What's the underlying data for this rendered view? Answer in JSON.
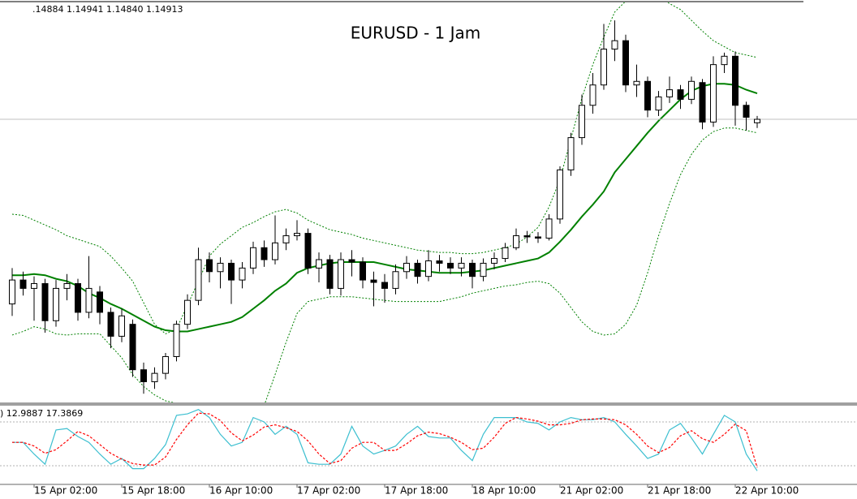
{
  "chart_data": [
    {
      "type": "candlestick",
      "title": "EURUSD - 1 Jam",
      "ohlc_label": ".14884 1.14941 1.14840 1.14913",
      "categories": [
        null,
        null,
        "15 Apr 02:00",
        null,
        null,
        null,
        null,
        null,
        null,
        null,
        "15 Apr 18:00",
        null,
        null,
        null,
        null,
        null,
        null,
        null,
        "16 Apr 10:00",
        null,
        null,
        null,
        null,
        null,
        null,
        null,
        "17 Apr 02:00",
        null,
        null,
        null,
        null,
        null,
        null,
        null,
        "17 Apr 18:00",
        null,
        null,
        null,
        null,
        null,
        null,
        null,
        "18 Apr 10:00",
        null,
        null,
        null,
        null,
        null,
        null,
        null,
        "21 Apr 02:00",
        null,
        null,
        null,
        null,
        null,
        null,
        null,
        "21 Apr 18:00",
        null,
        null,
        null,
        null,
        null,
        null,
        null,
        "22 Apr 10:00",
        null,
        null
      ],
      "open": [
        1.1337,
        1.1357,
        1.135,
        1.1354,
        1.1323,
        1.135,
        1.1354,
        1.133,
        1.1347,
        1.133,
        1.131,
        1.132,
        1.1282,
        1.1272,
        1.1279,
        1.1293,
        1.132,
        1.134,
        1.1374,
        1.1364,
        1.1371,
        1.1357,
        1.1367,
        1.1384,
        1.1374,
        1.1388,
        1.1394,
        1.1396,
        1.1367,
        1.1374,
        1.135,
        1.1374,
        1.1372,
        1.1357,
        1.1355,
        1.135,
        1.1364,
        1.1371,
        1.136,
        1.1373,
        1.1371,
        1.1367,
        1.1371,
        1.136,
        1.1371,
        1.1375,
        1.1384,
        1.1394,
        1.1393,
        1.1392,
        1.1408,
        1.1449,
        1.1476,
        1.1503,
        1.152,
        1.155,
        1.1557,
        1.152,
        1.1523,
        1.1499,
        1.151,
        1.1516,
        1.1508,
        1.1522,
        1.1489,
        1.1537,
        1.1544,
        1.1503,
        1.14884
      ],
      "high": [
        1.1367,
        1.1364,
        1.136,
        1.1358,
        1.1357,
        1.1362,
        1.1358,
        1.1377,
        1.1352,
        1.1334,
        1.1333,
        1.1324,
        1.1288,
        1.1284,
        1.1296,
        1.1323,
        1.1345,
        1.1384,
        1.138,
        1.1376,
        1.1374,
        1.1372,
        1.1389,
        1.139,
        1.1411,
        1.14,
        1.1407,
        1.14,
        1.138,
        1.1378,
        1.138,
        1.1382,
        1.1376,
        1.1364,
        1.1362,
        1.137,
        1.1377,
        1.1374,
        1.1382,
        1.1378,
        1.1376,
        1.1376,
        1.1374,
        1.1375,
        1.138,
        1.1388,
        1.14,
        1.1398,
        1.1397,
        1.1412,
        1.1452,
        1.148,
        1.1512,
        1.153,
        1.1571,
        1.1574,
        1.1562,
        1.1537,
        1.1527,
        1.1515,
        1.1527,
        1.152,
        1.1527,
        1.1525,
        1.1544,
        1.1547,
        1.1548,
        1.1506,
        1.14941
      ],
      "low": [
        1.1327,
        1.1344,
        1.1323,
        1.1313,
        1.1318,
        1.134,
        1.1323,
        1.1325,
        1.132,
        1.13,
        1.1305,
        1.1276,
        1.1262,
        1.1266,
        1.1274,
        1.1289,
        1.1316,
        1.1336,
        1.1355,
        1.135,
        1.1337,
        1.135,
        1.1362,
        1.1368,
        1.137,
        1.1382,
        1.139,
        1.1362,
        1.1355,
        1.1345,
        1.1344,
        1.136,
        1.135,
        1.1335,
        1.1338,
        1.1345,
        1.1358,
        1.1354,
        1.1356,
        1.1364,
        1.1362,
        1.136,
        1.135,
        1.1356,
        1.1366,
        1.1372,
        1.1382,
        1.1388,
        1.1388,
        1.139,
        1.1404,
        1.1444,
        1.147,
        1.1496,
        1.1516,
        1.154,
        1.1514,
        1.151,
        1.1493,
        1.1494,
        1.1505,
        1.15,
        1.1504,
        1.1483,
        1.1485,
        1.153,
        1.1486,
        1.1482,
        1.1484
      ],
      "close": [
        1.1357,
        1.135,
        1.1354,
        1.1323,
        1.135,
        1.1354,
        1.133,
        1.135,
        1.133,
        1.131,
        1.1327,
        1.1282,
        1.1272,
        1.1279,
        1.1293,
        1.132,
        1.134,
        1.1374,
        1.1364,
        1.1371,
        1.1357,
        1.1367,
        1.1384,
        1.1374,
        1.1388,
        1.1394,
        1.1396,
        1.1367,
        1.1374,
        1.135,
        1.1374,
        1.1372,
        1.1357,
        1.1355,
        1.135,
        1.1364,
        1.1371,
        1.136,
        1.1373,
        1.1371,
        1.1367,
        1.1371,
        1.136,
        1.1371,
        1.1375,
        1.1384,
        1.1394,
        1.1393,
        1.1392,
        1.1408,
        1.1449,
        1.1476,
        1.1503,
        1.152,
        1.155,
        1.1557,
        1.152,
        1.1523,
        1.1499,
        1.151,
        1.1516,
        1.1508,
        1.1523,
        1.1489,
        1.1537,
        1.1544,
        1.1503,
        1.1493,
        1.14913
      ],
      "bands": {
        "color": "#008000",
        "upper": [
          1.1412,
          1.1411,
          1.1407,
          1.1403,
          1.1399,
          1.1394,
          1.1391,
          1.1388,
          1.1385,
          1.1377,
          1.1367,
          1.1356,
          1.1338,
          1.132,
          1.1312,
          1.1316,
          1.1336,
          1.1356,
          1.1377,
          1.1387,
          1.1394,
          1.1401,
          1.1405,
          1.141,
          1.1414,
          1.1416,
          1.1413,
          1.1407,
          1.1403,
          1.1399,
          1.1397,
          1.1395,
          1.1392,
          1.139,
          1.1388,
          1.1386,
          1.1384,
          1.1382,
          1.1381,
          1.138,
          1.138,
          1.1379,
          1.1379,
          1.138,
          1.1382,
          1.1384,
          1.1387,
          1.1393,
          1.1401,
          1.1418,
          1.1441,
          1.1475,
          1.1509,
          1.1537,
          1.156,
          1.1581,
          1.159,
          1.1594,
          1.1596,
          1.1594,
          1.1588,
          1.1583,
          1.1574,
          1.1565,
          1.1557,
          1.1552,
          1.1547,
          1.1545,
          1.1543
        ],
        "middle": [
          1.1361,
          1.1361,
          1.1362,
          1.1361,
          1.1358,
          1.1356,
          1.1352,
          1.1346,
          1.1342,
          1.1337,
          1.1333,
          1.1328,
          1.1323,
          1.1318,
          1.1315,
          1.1314,
          1.1314,
          1.1316,
          1.1318,
          1.132,
          1.1322,
          1.1326,
          1.1333,
          1.134,
          1.1348,
          1.1354,
          1.1363,
          1.1367,
          1.1369,
          1.1371,
          1.1372,
          1.1372,
          1.1372,
          1.1372,
          1.137,
          1.1368,
          1.1366,
          1.1365,
          1.1364,
          1.1363,
          1.1363,
          1.1363,
          1.1364,
          1.1365,
          1.1367,
          1.1369,
          1.1371,
          1.1373,
          1.1375,
          1.138,
          1.1389,
          1.1399,
          1.141,
          1.142,
          1.1431,
          1.1447,
          1.1458,
          1.1469,
          1.148,
          1.149,
          1.1499,
          1.1508,
          1.1515,
          1.1519,
          1.1521,
          1.1521,
          1.152,
          1.1516,
          1.1513
        ],
        "lower": [
          1.1311,
          1.1314,
          1.1318,
          1.1316,
          1.1312,
          1.1311,
          1.1312,
          1.1312,
          1.1312,
          1.1302,
          1.1292,
          1.1278,
          1.1268,
          1.1261,
          1.1256,
          1.1254,
          1.1253,
          1.1251,
          1.125,
          1.1248,
          1.1248,
          1.1248,
          1.125,
          1.1252,
          1.1278,
          1.1305,
          1.1329,
          1.1339,
          1.1341,
          1.1343,
          1.1343,
          1.1343,
          1.1342,
          1.1341,
          1.134,
          1.1339,
          1.1339,
          1.1339,
          1.1339,
          1.1339,
          1.1341,
          1.1343,
          1.1346,
          1.1348,
          1.135,
          1.1352,
          1.1353,
          1.1355,
          1.1356,
          1.1354,
          1.1346,
          1.1334,
          1.1322,
          1.1314,
          1.1311,
          1.1312,
          1.132,
          1.1336,
          1.1363,
          1.1394,
          1.1421,
          1.1445,
          1.1462,
          1.1474,
          1.1481,
          1.1484,
          1.1484,
          1.1482,
          1.148
        ]
      },
      "ylim": [
        1.1254,
        1.1591
      ],
      "bull_color": "#ffffff",
      "bear_color": "#000000",
      "price_line_color": "#c0c0c0"
    },
    {
      "type": "line",
      "label": ") 12.9887 17.3869",
      "ylim": [
        0,
        100
      ],
      "levels": [
        20,
        80
      ],
      "series": [
        {
          "color": "#3cbfd0",
          "dash": false,
          "values": [
            52,
            52,
            36,
            22,
            69,
            71,
            60,
            52,
            36,
            22,
            30,
            16,
            16,
            30,
            49,
            89,
            91,
            97,
            86,
            63,
            47,
            52,
            86,
            80,
            63,
            74,
            63,
            24,
            22,
            22,
            36,
            74,
            47,
            36,
            41,
            47,
            63,
            74,
            60,
            58,
            58,
            41,
            27,
            63,
            86,
            86,
            86,
            80,
            78,
            69,
            80,
            86,
            83,
            83,
            86,
            80,
            63,
            47,
            30,
            36,
            69,
            78,
            58,
            36,
            63,
            89,
            80,
            36,
            12.9887
          ]
        },
        {
          "color": "#ff0000",
          "dash": true,
          "values": [
            52,
            52,
            47,
            37,
            42,
            54,
            67,
            61,
            49,
            37,
            29,
            23,
            21,
            21,
            32,
            56,
            76,
            92,
            91,
            82,
            65,
            54,
            62,
            73,
            76,
            72,
            67,
            54,
            36,
            23,
            27,
            44,
            52,
            52,
            41,
            41,
            50,
            61,
            66,
            64,
            59,
            52,
            42,
            44,
            59,
            78,
            86,
            84,
            81,
            76,
            76,
            78,
            83,
            84,
            84,
            83,
            76,
            63,
            47,
            38,
            45,
            61,
            68,
            57,
            52,
            63,
            77,
            68,
            17.3869
          ]
        }
      ]
    }
  ]
}
